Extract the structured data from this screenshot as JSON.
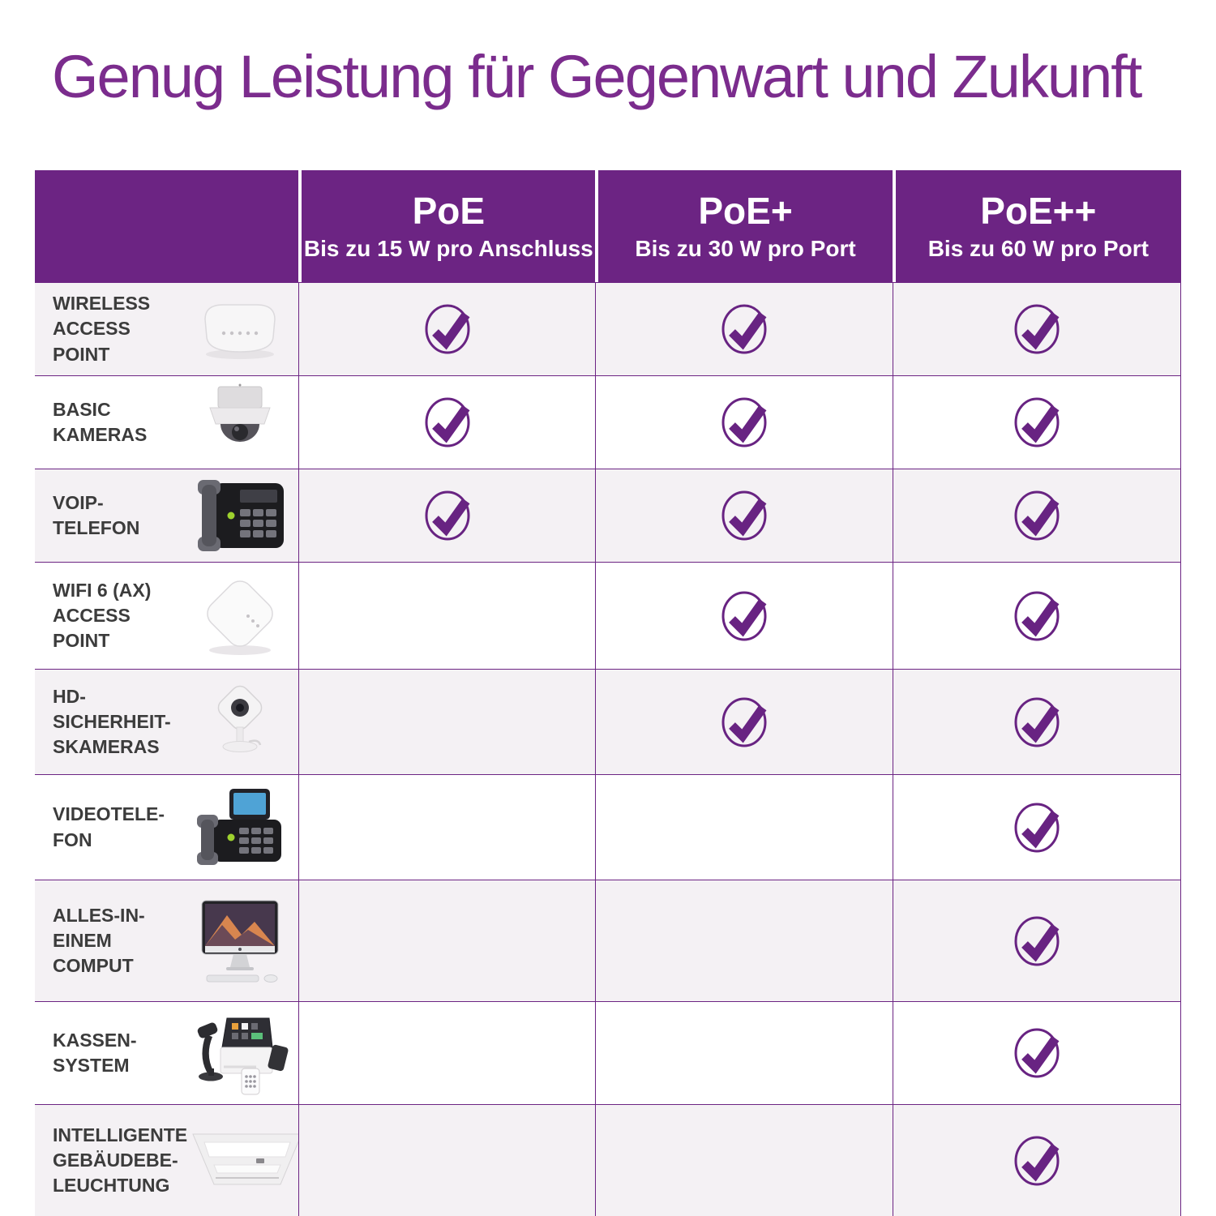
{
  "title": "Genug Leistung für Gegenwart und Zukunft",
  "colors": {
    "header_bg": "#6C2483",
    "title_text": "#7B2C8D",
    "check": "#682382",
    "grid_line": "#6C2483",
    "row_alt_bg": "#F4F1F4",
    "row_bg": "#FFFFFF",
    "label_text": "#3C3C3C",
    "header_text": "#FFFFFF"
  },
  "table": {
    "columns": [
      {
        "id": "poe",
        "label": "PoE",
        "sublabel": "Bis zu 15 W pro Anschluss"
      },
      {
        "id": "poe-plus",
        "label": "PoE+",
        "sublabel": "Bis zu 30 W pro Port"
      },
      {
        "id": "poe-plus-plus",
        "label": "PoE++",
        "sublabel": "Bis zu 60 W pro Port"
      }
    ],
    "rows": [
      {
        "label": "WIRELESS\nACCESS\nPOINT",
        "icon": "wireless-access-point",
        "checks": [
          true,
          true,
          true
        ]
      },
      {
        "label": "BASIC\nKAMERAS",
        "icon": "dome-camera",
        "checks": [
          true,
          true,
          true
        ]
      },
      {
        "label": "VOIP-\nTELEFON",
        "icon": "voip-phone",
        "checks": [
          true,
          true,
          true
        ]
      },
      {
        "label": "WIFI 6 (AX)\nACCESS\nPOINT",
        "icon": "wifi6-access-point",
        "checks": [
          false,
          true,
          true
        ]
      },
      {
        "label": "HD-\nSICHERHEIT-\nSKAMERAS",
        "icon": "hd-security-camera",
        "checks": [
          false,
          true,
          true
        ]
      },
      {
        "label": "VIDEOTELE-\nFON",
        "icon": "video-phone",
        "checks": [
          false,
          false,
          true
        ]
      },
      {
        "label": "ALLES-IN-\nEINEM\nCOMPUT",
        "icon": "all-in-one-computer",
        "checks": [
          false,
          false,
          true
        ]
      },
      {
        "label": "KASSEN-\nSYSTEM",
        "icon": "pos-system",
        "checks": [
          false,
          false,
          true
        ]
      },
      {
        "label": "INTELLIGENTE\nGEBÄUDEBE-\nLEUCHTUNG",
        "icon": "smart-building-lighting",
        "checks": [
          false,
          false,
          true
        ]
      }
    ],
    "check_icon": "check-circle"
  }
}
